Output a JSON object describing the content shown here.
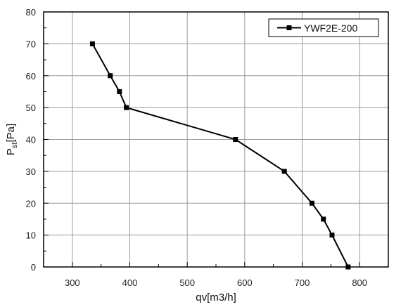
{
  "chart_data": {
    "type": "line",
    "title": "",
    "xlabel": "qv[m3/h]",
    "ylabel_main": "P",
    "ylabel_sub": "st",
    "ylabel_rest": "[Pa]",
    "xlim": [
      250,
      850
    ],
    "ylim": [
      0,
      80
    ],
    "xticks": [
      300,
      400,
      500,
      600,
      700,
      800
    ],
    "yticks": [
      0,
      10,
      20,
      30,
      40,
      50,
      60,
      70,
      80
    ],
    "grid": true,
    "legend_position": "top-right",
    "series": [
      {
        "name": "YWF2E-200",
        "color": "#000000",
        "marker": "square",
        "x": [
          335,
          366,
          382,
          394,
          584,
          669,
          717,
          737,
          752,
          780
        ],
        "y": [
          70,
          60,
          55,
          50,
          40,
          30,
          20,
          15,
          10,
          0
        ]
      }
    ]
  }
}
